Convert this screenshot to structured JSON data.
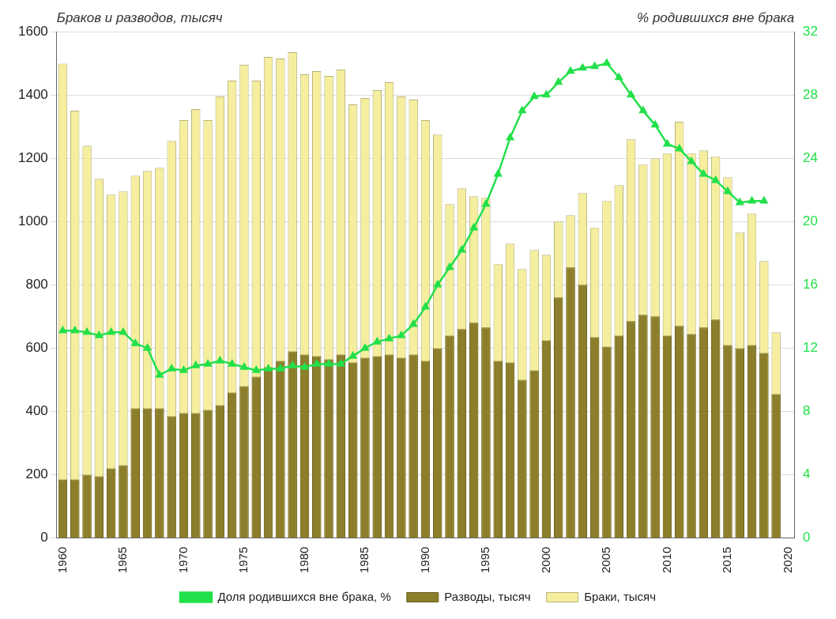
{
  "chart_data": {
    "type": "bar",
    "y_label": "Браков и разводов, тысяч",
    "y2_label": "% родившихся вне брака",
    "categories": [
      "1960",
      null,
      null,
      null,
      null,
      "1965",
      null,
      null,
      null,
      null,
      "1970",
      null,
      null,
      null,
      null,
      "1975",
      null,
      null,
      null,
      null,
      "1980",
      null,
      null,
      null,
      null,
      "1985",
      null,
      null,
      null,
      null,
      "1990",
      null,
      null,
      null,
      null,
      "1995",
      null,
      null,
      null,
      null,
      "2000",
      null,
      null,
      null,
      null,
      "2005",
      null,
      null,
      null,
      null,
      "2010",
      null,
      null,
      null,
      null,
      "2015",
      null,
      null,
      null,
      null,
      "2020"
    ],
    "series": [
      {
        "name": "Браки, тысяч",
        "type": "bar",
        "color": "#f5ee9e",
        "values": [
          1499,
          1350,
          1240,
          1135,
          1085,
          1095,
          1145,
          1160,
          1170,
          1255,
          1320,
          1355,
          1320,
          1395,
          1445,
          1495,
          1445,
          1520,
          1515,
          1535,
          1465,
          1475,
          1460,
          1480,
          1370,
          1390,
          1415,
          1440,
          1395,
          1385,
          1320,
          1275,
          1055,
          1105,
          1080,
          1075,
          865,
          930,
          850,
          910,
          895,
          1000,
          1020,
          1090,
          980,
          1065,
          1115,
          1260,
          1180,
          1200,
          1215,
          1315,
          1215,
          1225,
          1205,
          1140,
          965,
          1025,
          875,
          650,
          null
        ]
      },
      {
        "name": "Разводы, тысяч",
        "type": "bar",
        "color": "#8c7e2a",
        "values": [
          185,
          185,
          200,
          195,
          220,
          230,
          410,
          410,
          410,
          385,
          395,
          395,
          405,
          420,
          460,
          480,
          510,
          540,
          560,
          590,
          580,
          575,
          565,
          580,
          555,
          570,
          575,
          580,
          570,
          580,
          560,
          600,
          640,
          660,
          680,
          665,
          560,
          555,
          500,
          530,
          625,
          760,
          855,
          800,
          635,
          605,
          640,
          685,
          705,
          700,
          640,
          670,
          645,
          665,
          690,
          610,
          600,
          610,
          585,
          455,
          null
        ]
      },
      {
        "name": "Доля родившихся вне брака, %",
        "type": "line",
        "axis": "y2",
        "color": "#22e04a",
        "marker": "triangle",
        "values": [
          13.1,
          13.1,
          13.0,
          12.8,
          13.0,
          13.0,
          12.3,
          12.0,
          10.3,
          10.7,
          10.6,
          10.9,
          11.0,
          11.2,
          11.0,
          10.8,
          10.6,
          10.7,
          10.7,
          10.9,
          10.8,
          11.0,
          11.0,
          11.0,
          11.5,
          12.0,
          12.4,
          12.6,
          12.8,
          13.5,
          14.6,
          16.0,
          17.1,
          18.2,
          19.6,
          21.1,
          23.0,
          25.3,
          27.0,
          27.9,
          28.0,
          28.8,
          29.5,
          29.7,
          29.8,
          30.0,
          29.1,
          28.0,
          27.0,
          26.1,
          24.9,
          24.6,
          23.8,
          23.0,
          22.6,
          21.9,
          21.2,
          21.3,
          21.3,
          null,
          null
        ]
      }
    ],
    "ylim": [
      0,
      1600
    ],
    "yticks": [
      0,
      200,
      400,
      600,
      800,
      1000,
      1200,
      1400,
      1600
    ],
    "y2lim": [
      0,
      32
    ],
    "y2ticks": [
      0,
      4,
      8,
      12,
      16,
      20,
      24,
      28,
      32
    ],
    "grid": true,
    "legend": "bottom"
  }
}
